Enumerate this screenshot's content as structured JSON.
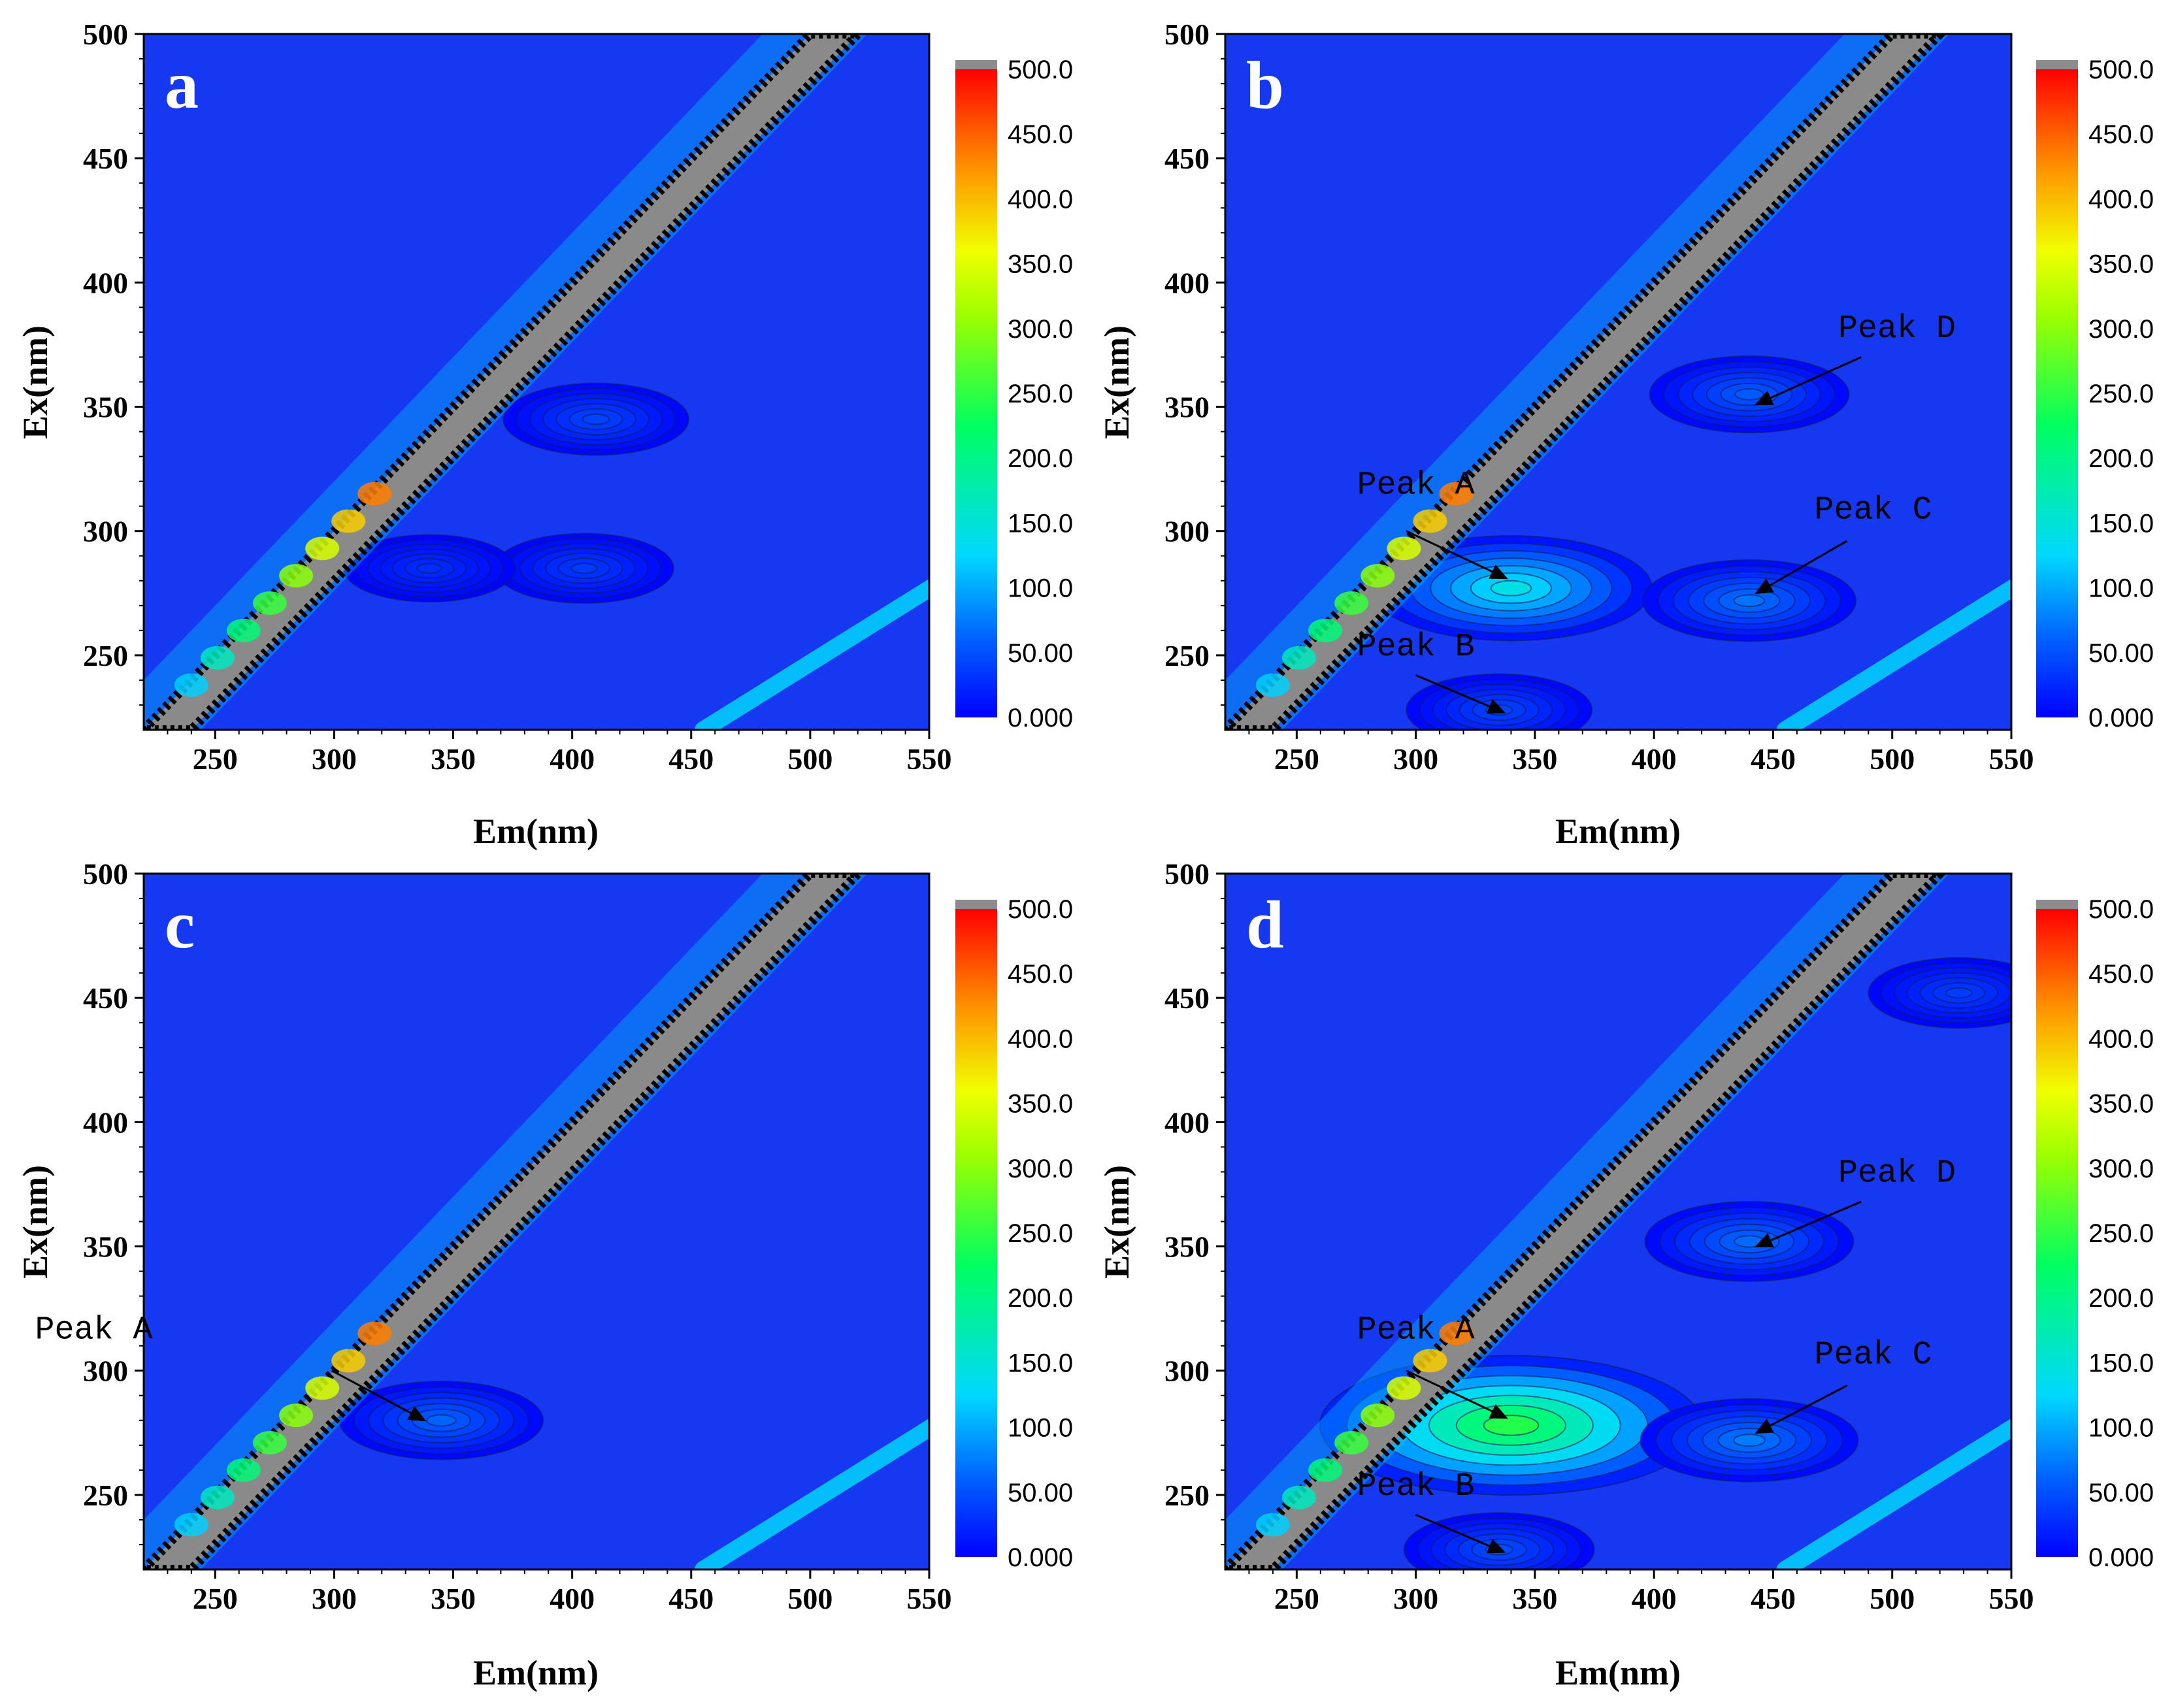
{
  "colors": {
    "background_blue": "#1538f0",
    "scatter_band": "#8a8a8a",
    "scatter_edge": "#000000",
    "cbar_stops": [
      "#0000ff",
      "#00a8ff",
      "#00ffe0",
      "#00ff40",
      "#7dff00",
      "#f6ff00",
      "#ff9a00",
      "#ff2a00",
      "#ff0000"
    ],
    "cbar_top": "#8c8c8c"
  },
  "chart_data": [
    {
      "type": "heatmap",
      "panel": "a",
      "xlabel": "Em(nm)",
      "ylabel": "Ex(nm)",
      "xlim": [
        220,
        550
      ],
      "ylim": [
        220,
        500
      ],
      "xticks": [
        "250",
        "300",
        "350",
        "400",
        "450",
        "500",
        "550"
      ],
      "yticks": [
        "250",
        "300",
        "350",
        "400",
        "450",
        "500"
      ],
      "colorbar": {
        "min": 0,
        "max": 500,
        "labels": [
          "0.000",
          "50.00",
          "100.0",
          "150.0",
          "200.0",
          "250.0",
          "300.0",
          "350.0",
          "400.0",
          "450.0",
          "500.0"
        ]
      },
      "fluorescence_peaks": [
        {
          "em": 410,
          "ex": 345,
          "value": 45
        },
        {
          "em": 405,
          "ex": 285,
          "value": 38
        },
        {
          "em": 340,
          "ex": 285,
          "value": 30
        }
      ],
      "peak_labels": []
    },
    {
      "type": "heatmap",
      "panel": "b",
      "xlabel": "Em(nm)",
      "ylabel": "Ex(nm)",
      "xlim": [
        220,
        550
      ],
      "ylim": [
        220,
        500
      ],
      "xticks": [
        "250",
        "300",
        "350",
        "400",
        "450",
        "500",
        "550"
      ],
      "yticks": [
        "250",
        "300",
        "350",
        "400",
        "450",
        "500"
      ],
      "colorbar": {
        "min": 0,
        "max": 500,
        "labels": [
          "0.000",
          "50.00",
          "100.0",
          "150.0",
          "200.0",
          "250.0",
          "300.0",
          "350.0",
          "400.0",
          "450.0",
          "500.0"
        ]
      },
      "fluorescence_peaks": [
        {
          "em": 340,
          "ex": 277,
          "value": 150
        },
        {
          "em": 440,
          "ex": 272,
          "value": 75
        },
        {
          "em": 440,
          "ex": 355,
          "value": 60
        },
        {
          "em": 335,
          "ex": 228,
          "value": 45
        }
      ],
      "peak_labels": [
        {
          "text": "Peak A",
          "text_em": 300,
          "text_ex": 315,
          "arrow_from": [
            296,
            300
          ],
          "arrow_to": [
            338,
            281
          ]
        },
        {
          "text": "Peak B",
          "text_em": 300,
          "text_ex": 250,
          "arrow_from": [
            300,
            242
          ],
          "arrow_to": [
            337,
            227
          ]
        },
        {
          "text": "Peak C",
          "text_em": 492,
          "text_ex": 305,
          "arrow_from": [
            481,
            296
          ],
          "arrow_to": [
            443,
            275
          ]
        },
        {
          "text": "Peak D",
          "text_em": 502,
          "text_ex": 378,
          "arrow_from": [
            487,
            370
          ],
          "arrow_to": [
            443,
            351
          ]
        }
      ]
    },
    {
      "type": "heatmap",
      "panel": "c",
      "xlabel": "Em(nm)",
      "ylabel": "Ex(nm)",
      "xlim": [
        220,
        550
      ],
      "ylim": [
        220,
        500
      ],
      "xticks": [
        "250",
        "300",
        "350",
        "400",
        "450",
        "500",
        "550"
      ],
      "yticks": [
        "250",
        "300",
        "350",
        "400",
        "450",
        "500"
      ],
      "colorbar": {
        "min": 0,
        "max": 500,
        "labels": [
          "0.000",
          "50.00",
          "100.0",
          "150.0",
          "200.0",
          "250.0",
          "300.0",
          "350.0",
          "400.0",
          "450.0",
          "500.0"
        ]
      },
      "fluorescence_peaks": [
        {
          "em": 345,
          "ex": 280,
          "value": 65
        }
      ],
      "peak_labels": [
        {
          "text": "Peak A",
          "text_em": 199,
          "text_ex": 313,
          "arrow_from": [
            299,
            300
          ],
          "arrow_to": [
            338,
            280
          ]
        }
      ]
    },
    {
      "type": "heatmap",
      "panel": "d",
      "xlabel": "Em(nm)",
      "ylabel": "Ex(nm)",
      "xlim": [
        220,
        550
      ],
      "ylim": [
        220,
        500
      ],
      "xticks": [
        "250",
        "300",
        "350",
        "400",
        "450",
        "500",
        "550"
      ],
      "yticks": [
        "250",
        "300",
        "350",
        "400",
        "450",
        "500"
      ],
      "colorbar": {
        "min": 0,
        "max": 500,
        "labels": [
          "0.000",
          "50.00",
          "100.0",
          "150.0",
          "200.0",
          "250.0",
          "300.0",
          "350.0",
          "400.0",
          "450.0",
          "500.0"
        ]
      },
      "fluorescence_peaks": [
        {
          "em": 340,
          "ex": 278,
          "value": 260
        },
        {
          "em": 440,
          "ex": 272,
          "value": 80
        },
        {
          "em": 440,
          "ex": 352,
          "value": 70
        },
        {
          "em": 335,
          "ex": 228,
          "value": 50
        },
        {
          "em": 528,
          "ex": 452,
          "value": 40
        }
      ],
      "peak_labels": [
        {
          "text": "Peak A",
          "text_em": 300,
          "text_ex": 313,
          "arrow_from": [
            296,
            300
          ],
          "arrow_to": [
            338,
            281
          ]
        },
        {
          "text": "Peak B",
          "text_em": 300,
          "text_ex": 250,
          "arrow_from": [
            300,
            242
          ],
          "arrow_to": [
            337,
            227
          ]
        },
        {
          "text": "Peak C",
          "text_em": 492,
          "text_ex": 303,
          "arrow_from": [
            481,
            294
          ],
          "arrow_to": [
            443,
            275
          ]
        },
        {
          "text": "Peak D",
          "text_em": 502,
          "text_ex": 376,
          "arrow_from": [
            487,
            368
          ],
          "arrow_to": [
            443,
            350
          ]
        }
      ]
    }
  ]
}
